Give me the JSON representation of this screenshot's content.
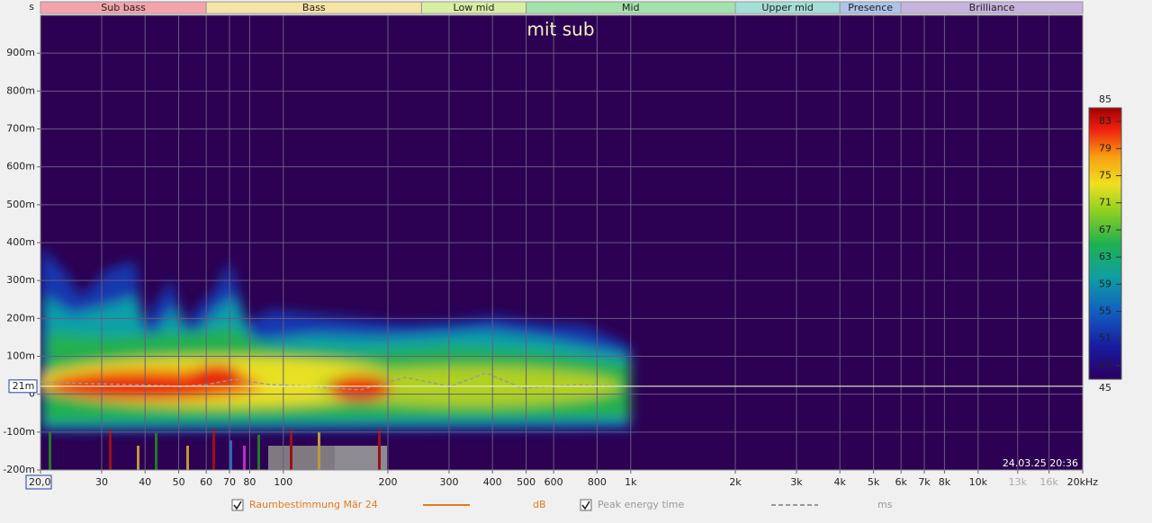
{
  "chart_data": {
    "type": "spectrogram",
    "title": "mit sub",
    "y_unit": "s",
    "x_log": true,
    "grid": true,
    "xlim": [
      20,
      20000
    ],
    "ylim": [
      -0.2,
      1.0
    ],
    "xticks": [
      {
        "value": 20,
        "label": "20,0"
      },
      30,
      40,
      50,
      60,
      70,
      80,
      100,
      200,
      300,
      400,
      500,
      600,
      800,
      {
        "value": 1000,
        "label": "1k"
      },
      {
        "value": 2000,
        "label": "2k"
      },
      {
        "value": 3000,
        "label": "3k"
      },
      {
        "value": 4000,
        "label": "4k"
      },
      {
        "value": 5000,
        "label": "5k"
      },
      {
        "value": 6000,
        "label": "6k"
      },
      {
        "value": 7000,
        "label": "7k"
      },
      {
        "value": 8000,
        "label": "8k"
      },
      {
        "value": 10000,
        "label": "10k"
      },
      {
        "value": 13000,
        "label": "13k",
        "color": "#aaaaaa"
      },
      {
        "value": 16000,
        "label": "16k",
        "color": "#aaaaaa"
      },
      {
        "value": 20000,
        "label": "20kHz"
      }
    ],
    "yticks": [
      {
        "value": -0.2,
        "label": "-200m"
      },
      {
        "value": -0.1,
        "label": "-100m"
      },
      0,
      {
        "value": 0.1,
        "label": "100m"
      },
      {
        "value": 0.2,
        "label": "200m"
      },
      {
        "value": 0.3,
        "label": "300m"
      },
      {
        "value": 0.4,
        "label": "400m"
      },
      {
        "value": 0.5,
        "label": "500m"
      },
      {
        "value": 0.6,
        "label": "600m"
      },
      {
        "value": 0.7,
        "label": "700m"
      },
      {
        "value": 0.8,
        "label": "800m"
      },
      {
        "value": 0.9,
        "label": "900m"
      }
    ],
    "bands": [
      {
        "name": "Sub bass",
        "start": 20,
        "end": 60,
        "color": "#f4a3aa"
      },
      {
        "name": "Bass",
        "start": 60,
        "end": 250,
        "color": "#f7e3a3"
      },
      {
        "name": "Low mid",
        "start": 250,
        "end": 500,
        "color": "#d8eea3"
      },
      {
        "name": "Mid",
        "start": 500,
        "end": 2000,
        "color": "#a3e2ab"
      },
      {
        "name": "Upper mid",
        "start": 2000,
        "end": 4000,
        "color": "#a3ded8"
      },
      {
        "name": "Presence",
        "start": 4000,
        "end": 6000,
        "color": "#adc3ea"
      },
      {
        "name": "Brilliance",
        "start": 6000,
        "end": 20000,
        "color": "#c6b3de"
      }
    ],
    "colorbar": {
      "lim": [
        45,
        85
      ],
      "ticks": [
        45,
        47,
        51,
        55,
        59,
        63,
        67,
        71,
        75,
        79,
        83,
        85
      ]
    },
    "cursor": {
      "value": 0.021,
      "label": "21m"
    },
    "timestamp": "24.03.25 20:36",
    "legend": [
      {
        "name": "Raumbestimmung Mär 24",
        "unit": "dB",
        "color": "#e07a1e"
      },
      {
        "name": "Peak energy time",
        "unit": "ms",
        "color": "#999999"
      }
    ]
  }
}
